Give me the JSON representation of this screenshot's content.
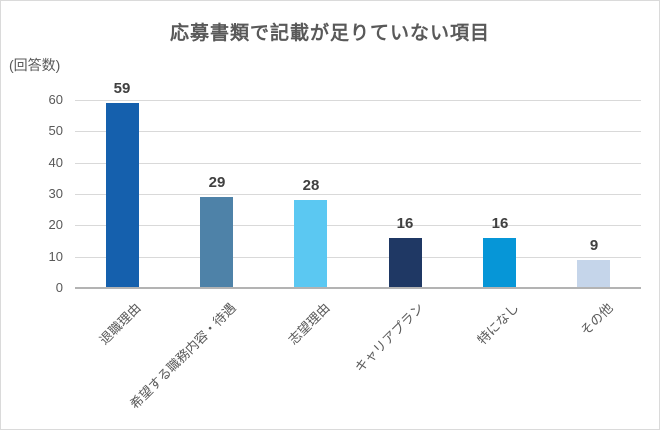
{
  "chart_data": {
    "type": "bar",
    "title": "応募書類で記載が足りていない項目",
    "ylabel": "(回答数)",
    "xlabel": "",
    "categories": [
      "退職理由",
      "希望する職務内容・待遇",
      "志望理由",
      "キャリアプラン",
      "特になし",
      "その他"
    ],
    "values": [
      59,
      29,
      28,
      16,
      16,
      9
    ],
    "bar_colors": [
      "#1560AD",
      "#4E82A8",
      "#5BC8F2",
      "#1F3864",
      "#0696D7",
      "#C5D5EA"
    ],
    "yticks": [
      0,
      10,
      20,
      30,
      40,
      50,
      60
    ],
    "ylim": [
      0,
      60
    ],
    "grid": "horizontal-only",
    "legend": "none",
    "data_labels": true,
    "colors": {
      "title_text": "#595959",
      "axis_text": "#595959",
      "data_label_text": "#404040",
      "gridline": "#D9D9D9",
      "axis_line": "#B3B3B3",
      "background": "#FFFFFF",
      "frame_border": "#DADADA"
    }
  }
}
